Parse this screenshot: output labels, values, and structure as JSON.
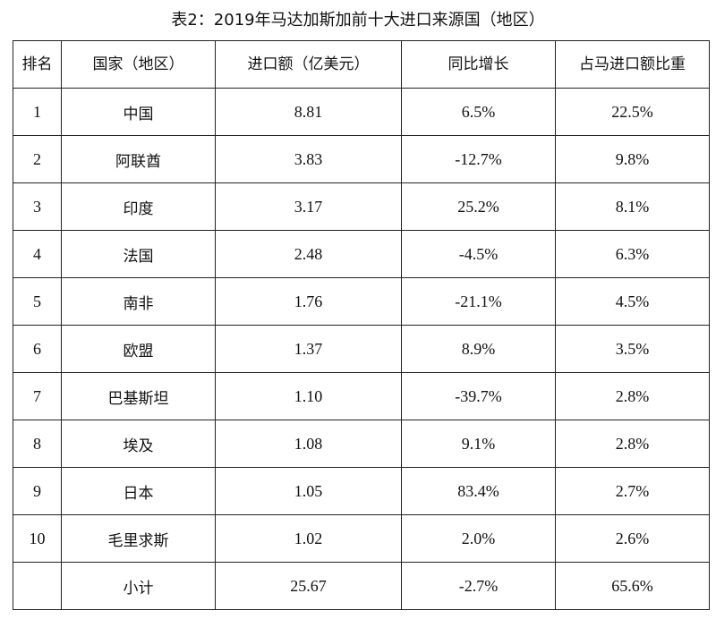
{
  "title": "表2：2019年马达加斯加前十大进口来源国（地区）",
  "headers": [
    "排名",
    "国家（地区）",
    "进口额（亿美元）",
    "同比增长",
    "占马进口额比重"
  ],
  "rows": [
    {
      "rank": "1",
      "country": "中国",
      "amount": "8.81",
      "yoy": "6.5%",
      "share": "22.5%"
    },
    {
      "rank": "2",
      "country": "阿联酋",
      "amount": "3.83",
      "yoy": "-12.7%",
      "share": "9.8%"
    },
    {
      "rank": "3",
      "country": "印度",
      "amount": "3.17",
      "yoy": "25.2%",
      "share": "8.1%"
    },
    {
      "rank": "4",
      "country": "法国",
      "amount": "2.48",
      "yoy": "-4.5%",
      "share": "6.3%"
    },
    {
      "rank": "5",
      "country": "南非",
      "amount": "1.76",
      "yoy": "-21.1%",
      "share": "4.5%"
    },
    {
      "rank": "6",
      "country": "欧盟",
      "amount": "1.37",
      "yoy": "8.9%",
      "share": "3.5%"
    },
    {
      "rank": "7",
      "country": "巴基斯坦",
      "amount": "1.10",
      "yoy": "-39.7%",
      "share": "2.8%"
    },
    {
      "rank": "8",
      "country": "埃及",
      "amount": "1.08",
      "yoy": "9.1%",
      "share": "2.8%"
    },
    {
      "rank": "9",
      "country": "日本",
      "amount": "1.05",
      "yoy": "83.4%",
      "share": "2.7%"
    },
    {
      "rank": "10",
      "country": "毛里求斯",
      "amount": "1.02",
      "yoy": "2.0%",
      "share": "2.6%"
    }
  ],
  "subtotal": {
    "rank": "",
    "country": "小计",
    "amount": "25.67",
    "yoy": "-2.7%",
    "share": "65.6%"
  }
}
